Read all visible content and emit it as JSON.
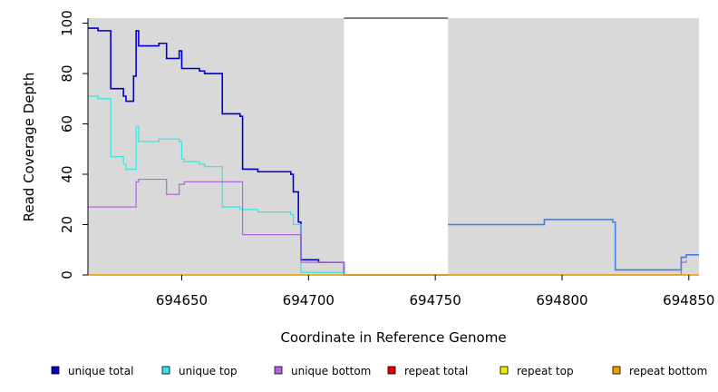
{
  "chart_data": {
    "type": "line",
    "title": "",
    "xlabel": "Coordinate in Reference Genome",
    "ylabel": "Read Coverage Depth",
    "xlim": [
      694613,
      694854
    ],
    "ylim": [
      0,
      102
    ],
    "x_ticks": [
      694650,
      694700,
      694750,
      694800,
      694850
    ],
    "y_ticks": [
      0,
      20,
      40,
      60,
      80,
      100
    ],
    "grid": false,
    "background": "#d9d9d9",
    "unshaded_ranges": [
      [
        694714,
        694755
      ]
    ],
    "legend_position": "bottom",
    "series": [
      {
        "name": "unique total",
        "color": "#0000cc",
        "line": "step",
        "points": [
          [
            694613,
            98
          ],
          [
            694617,
            97
          ],
          [
            694622,
            74
          ],
          [
            694627,
            71
          ],
          [
            694628,
            69
          ],
          [
            694631,
            79
          ],
          [
            694632,
            97
          ],
          [
            694633,
            91
          ],
          [
            694641,
            92
          ],
          [
            694644,
            86
          ],
          [
            694649,
            89
          ],
          [
            694650,
            82
          ],
          [
            694657,
            81
          ],
          [
            694659,
            80
          ],
          [
            694666,
            64
          ],
          [
            694673,
            63
          ],
          [
            694674,
            42
          ],
          [
            694680,
            41
          ],
          [
            694693,
            40
          ],
          [
            694694,
            33
          ],
          [
            694696,
            21
          ],
          [
            694697,
            6
          ],
          [
            694704,
            5
          ],
          [
            694714,
            0
          ],
          [
            694755,
            0
          ]
        ]
      },
      {
        "name": "unique top",
        "color": "#33e6e6",
        "line": "step",
        "points": [
          [
            694613,
            71
          ],
          [
            694617,
            70
          ],
          [
            694622,
            47
          ],
          [
            694627,
            44
          ],
          [
            694628,
            42
          ],
          [
            694632,
            59
          ],
          [
            694633,
            53
          ],
          [
            694641,
            54
          ],
          [
            694649,
            53
          ],
          [
            694650,
            46
          ],
          [
            694651,
            45
          ],
          [
            694657,
            44
          ],
          [
            694659,
            43
          ],
          [
            694666,
            27
          ],
          [
            694673,
            26
          ],
          [
            694680,
            25
          ],
          [
            694693,
            24
          ],
          [
            694694,
            20
          ],
          [
            694697,
            1
          ],
          [
            694714,
            0
          ],
          [
            694755,
            0
          ]
        ]
      },
      {
        "name": "unique bottom",
        "color": "#b266dd",
        "line": "step",
        "points": [
          [
            694613,
            27
          ],
          [
            694632,
            37
          ],
          [
            694633,
            38
          ],
          [
            694644,
            32
          ],
          [
            694649,
            36
          ],
          [
            694651,
            37
          ],
          [
            694674,
            16
          ],
          [
            694697,
            5
          ],
          [
            694714,
            0
          ],
          [
            694755,
            0
          ],
          [
            694847,
            5
          ],
          [
            694849,
            6
          ]
        ]
      },
      {
        "name": "repeat total",
        "color": "#ee0000",
        "line": "step",
        "points": [
          [
            694613,
            0
          ],
          [
            694854,
            0
          ]
        ]
      },
      {
        "name": "repeat top",
        "color": "#eeee00",
        "line": "step",
        "points": [
          [
            694613,
            0
          ],
          [
            694854,
            0
          ]
        ]
      },
      {
        "name": "repeat bottom",
        "color": "#f0a000",
        "line": "step",
        "points": [
          [
            694613,
            0
          ],
          [
            694854,
            0
          ]
        ]
      },
      {
        "name": "",
        "color": "#3f7fe6",
        "line": "step",
        "points": [
          [
            694755,
            20
          ],
          [
            694793,
            22
          ],
          [
            694820,
            21
          ],
          [
            694821,
            2
          ],
          [
            694847,
            7
          ],
          [
            694849,
            8
          ],
          [
            694854,
            8
          ]
        ]
      }
    ],
    "legend": [
      {
        "label": "unique total",
        "color": "#0000cc"
      },
      {
        "label": "unique top",
        "color": "#33e6e6"
      },
      {
        "label": "unique bottom",
        "color": "#b266dd"
      },
      {
        "label": "repeat total",
        "color": "#ee0000"
      },
      {
        "label": "repeat top",
        "color": "#eeee00"
      },
      {
        "label": "repeat bottom",
        "color": "#f0a000"
      }
    ]
  }
}
